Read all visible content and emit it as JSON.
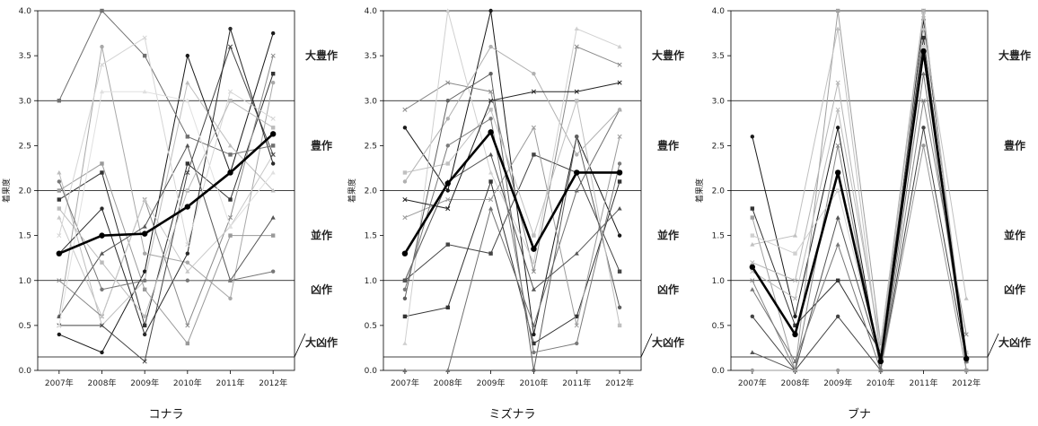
{
  "chart_data": [
    {
      "type": "line",
      "title": "コナラ",
      "ylabel": "着果度",
      "categories": [
        "2007年",
        "2008年",
        "2009年",
        "2010年",
        "2011年",
        "2012年"
      ],
      "ylim": [
        0,
        4
      ],
      "yticks": [
        "0.0",
        "0.5",
        "1.0",
        "1.5",
        "2.0",
        "2.5",
        "3.0",
        "3.5",
        "4.0"
      ],
      "thresholds": [
        0.15,
        1.0,
        2.0,
        3.0
      ],
      "bands": [
        "大豊作",
        "豊作",
        "並作",
        "凶作",
        "大凶作"
      ],
      "mean": {
        "values": [
          1.3,
          1.5,
          1.52,
          1.82,
          2.2,
          2.63
        ],
        "color": "#000000"
      },
      "series": [
        {
          "values": [
            0.4,
            0.2,
            1.1,
            3.5,
            2.2,
            3.75
          ],
          "color": "#1a1a1a"
        },
        {
          "values": [
            1.9,
            2.2,
            0.5,
            2.3,
            1.9,
            3.3
          ],
          "color": "#333333"
        },
        {
          "values": [
            2.2,
            0.5,
            1.0,
            3.2,
            2.5,
            2.0
          ],
          "color": "#bdbdbd"
        },
        {
          "values": [
            1.0,
            0.6,
            1.9,
            0.5,
            1.7,
            3.5
          ],
          "color": "#8a8a8a"
        },
        {
          "values": [
            0.6,
            3.6,
            1.3,
            1.2,
            0.8,
            3.2
          ],
          "color": "#a8a8a8"
        },
        {
          "values": [
            2.0,
            2.3,
            0.9,
            0.3,
            1.5,
            1.5
          ],
          "color": "#9a9a9a"
        },
        {
          "values": [
            1.7,
            0.6,
            1.9,
            1.1,
            1.6,
            2.4
          ],
          "color": "#c8c8c8"
        },
        {
          "values": [
            0.5,
            0.5,
            0.1,
            2.2,
            3.6,
            2.4
          ],
          "color": "#444444"
        },
        {
          "values": [
            1.3,
            1.8,
            0.4,
            1.3,
            3.8,
            2.3
          ],
          "color": "#2a2a2a"
        },
        {
          "values": [
            3.0,
            4.0,
            3.5,
            2.6,
            2.4,
            2.5
          ],
          "color": "#707070"
        },
        {
          "values": [
            0.6,
            1.3,
            1.6,
            2.5,
            1.0,
            1.7
          ],
          "color": "#555555"
        },
        {
          "values": [
            1.5,
            3.4,
            3.7,
            1.4,
            3.1,
            2.8
          ],
          "color": "#d5d5d5"
        },
        {
          "values": [
            2.1,
            0.9,
            1.0,
            1.0,
            1.0,
            1.1
          ],
          "color": "#777777"
        },
        {
          "values": [
            1.8,
            1.2,
            0.6,
            2.0,
            3.0,
            2.7
          ],
          "color": "#bbbbbb"
        },
        {
          "values": [
            0.5,
            3.1,
            3.1,
            3.0,
            1.6,
            2.2
          ],
          "color": "#e0e0e0"
        }
      ]
    },
    {
      "type": "line",
      "title": "ミズナラ",
      "ylabel": "着果度",
      "categories": [
        "2007年",
        "2008年",
        "2009年",
        "2010年",
        "2011年",
        "2012年"
      ],
      "ylim": [
        0,
        4
      ],
      "yticks": [
        "0.0",
        "0.5",
        "1.0",
        "1.5",
        "2.0",
        "2.5",
        "3.0",
        "3.5",
        "4.0"
      ],
      "thresholds": [
        0.15,
        1.0,
        2.0,
        3.0
      ],
      "bands": [
        "大豊作",
        "豊作",
        "並作",
        "凶作",
        "大凶作"
      ],
      "mean": {
        "values": [
          1.3,
          2.08,
          2.65,
          1.35,
          2.2,
          2.2
        ],
        "color": "#000000"
      },
      "series": [
        {
          "values": [
            2.7,
            2.0,
            4.0,
            0.4,
            2.6,
            1.5
          ],
          "color": "#1a1a1a"
        },
        {
          "values": [
            0.6,
            0.7,
            2.1,
            0.3,
            0.6,
            2.1
          ],
          "color": "#333333"
        },
        {
          "values": [
            0.0,
            0.0,
            1.8,
            0.5,
            2.0,
            2.9
          ],
          "color": "#707070"
        },
        {
          "values": [
            2.9,
            3.2,
            3.1,
            1.1,
            3.6,
            3.4
          ],
          "color": "#8a8a8a"
        },
        {
          "values": [
            2.1,
            2.8,
            3.6,
            3.3,
            2.4,
            2.9
          ],
          "color": "#b0b0b0"
        },
        {
          "values": [
            1.0,
            1.4,
            1.3,
            2.4,
            2.2,
            1.1
          ],
          "color": "#444444"
        },
        {
          "values": [
            0.3,
            4.0,
            2.2,
            1.2,
            3.8,
            3.6
          ],
          "color": "#d0d0d0"
        },
        {
          "values": [
            1.7,
            1.9,
            1.9,
            2.7,
            0.5,
            2.6
          ],
          "color": "#9a9a9a"
        },
        {
          "values": [
            0.8,
            3.0,
            3.3,
            0.0,
            2.6,
            0.7
          ],
          "color": "#606060"
        },
        {
          "values": [
            2.2,
            2.3,
            2.9,
            1.5,
            3.0,
            0.5
          ],
          "color": "#c0c0c0"
        },
        {
          "values": [
            1.0,
            2.1,
            2.4,
            0.9,
            1.3,
            1.8
          ],
          "color": "#555555"
        },
        {
          "values": [
            1.9,
            1.8,
            3.0,
            3.1,
            3.1,
            3.2
          ],
          "color": "#222222"
        },
        {
          "values": [
            0.9,
            2.5,
            2.8,
            0.2,
            0.3,
            2.3
          ],
          "color": "#7a7a7a"
        }
      ]
    },
    {
      "type": "line",
      "title": "ブナ",
      "ylabel": "着果度",
      "categories": [
        "2007年",
        "2008年",
        "2009年",
        "2010年",
        "2011年",
        "2012年"
      ],
      "ylim": [
        0,
        4
      ],
      "yticks": [
        "0.0",
        "0.5",
        "1.0",
        "1.5",
        "2.0",
        "2.5",
        "3.0",
        "3.5",
        "4.0"
      ],
      "thresholds": [
        0.15,
        1.0,
        2.0,
        3.0
      ],
      "bands": [
        "大豊作",
        "豊作",
        "並作",
        "凶作",
        "大凶作"
      ],
      "mean": {
        "values": [
          1.15,
          0.4,
          2.2,
          0.1,
          3.55,
          0.13
        ],
        "color": "#000000"
      },
      "series": [
        {
          "values": [
            2.6,
            0.6,
            2.7,
            0.0,
            3.9,
            0.1
          ],
          "color": "#1a1a1a"
        },
        {
          "values": [
            1.7,
            0.0,
            4.0,
            0.3,
            4.0,
            0.0
          ],
          "color": "#a0a0a0"
        },
        {
          "values": [
            1.4,
            1.5,
            3.8,
            0.1,
            3.8,
            0.8
          ],
          "color": "#c0c0c0"
        },
        {
          "values": [
            1.0,
            0.0,
            2.5,
            0.0,
            3.0,
            0.4
          ],
          "color": "#888888"
        },
        {
          "values": [
            0.6,
            0.0,
            0.6,
            0.0,
            2.7,
            0.1
          ],
          "color": "#444444"
        },
        {
          "values": [
            1.8,
            0.5,
            1.0,
            0.2,
            3.7,
            0.1
          ],
          "color": "#333333"
        },
        {
          "values": [
            0.2,
            0.0,
            1.7,
            0.1,
            3.5,
            0.2
          ],
          "color": "#555555"
        },
        {
          "values": [
            1.2,
            1.0,
            3.2,
            0.2,
            4.0,
            0.0
          ],
          "color": "#b5b5b5"
        },
        {
          "values": [
            0.0,
            0.0,
            0.0,
            0.0,
            2.5,
            0.0
          ],
          "color": "#999999"
        },
        {
          "values": [
            1.5,
            1.3,
            2.0,
            0.1,
            3.6,
            0.2
          ],
          "color": "#d0d0d0"
        },
        {
          "values": [
            0.9,
            0.1,
            1.4,
            0.0,
            3.3,
            0.1
          ],
          "color": "#777777"
        },
        {
          "values": [
            1.1,
            0.8,
            2.9,
            0.3,
            3.95,
            0.15
          ],
          "color": "#bbbbbb"
        }
      ]
    }
  ]
}
